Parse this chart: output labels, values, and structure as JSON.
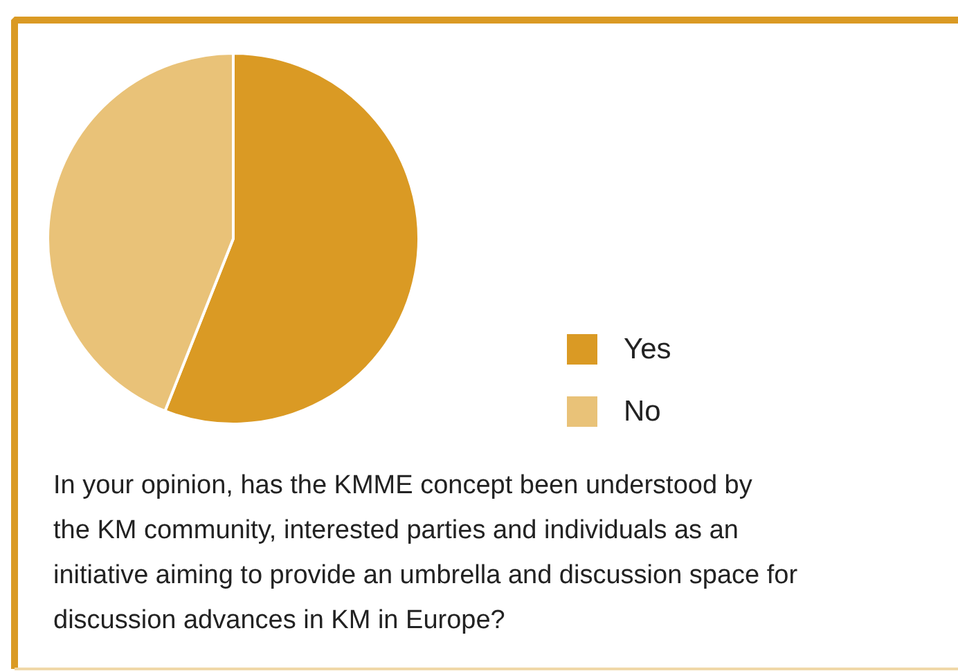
{
  "chart_data": {
    "type": "pie",
    "categories": [
      "Yes",
      "No"
    ],
    "values": [
      56,
      44
    ],
    "colors": [
      "#da9a24",
      "#e9c278"
    ],
    "legend": "right",
    "annotations": [
      "In your opinion, has the KMME concept been understood by\nthe KM community, interested parties and individuals as an\ninitiative aiming to provide an umbrella and discussion space for\ndiscussion advances in KM in Europe?"
    ]
  }
}
